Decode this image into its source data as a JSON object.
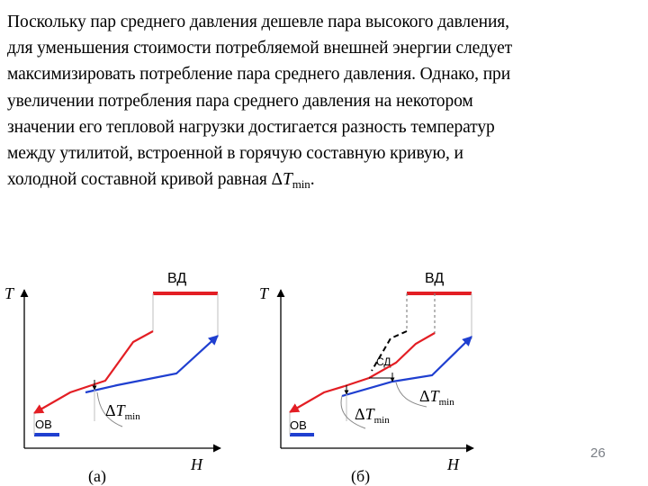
{
  "text": {
    "lines": [
      "Поскольку пар среднего давления дешевле пара высокого давления,",
      "для уменьшения стоимости потребляемой внешней энергии следует",
      "максимизировать потребление пара среднего давления. Однако, при",
      "увеличении потребления пара среднего давления на некотором",
      "значении его тепловой нагрузки достигается разность температур",
      "между утилитой, встроенной в горячую составную кривую, и"
    ],
    "last_line_prefix": "холодной составной кривой равная ",
    "delta": "Δ",
    "t_symbol": "T",
    "t_sub": "min",
    "last_line_suffix": "."
  },
  "figure_a": {
    "axis_t": "T",
    "axis_h": "H",
    "label_vd": "ВД",
    "label_ov": "ОВ",
    "dt_delta": "Δ",
    "dt_t": "T",
    "dt_sub": "min",
    "caption": "(а)"
  },
  "figure_b": {
    "axis_t": "T",
    "axis_h": "H",
    "label_vd": "ВД",
    "label_sd": "СД",
    "label_ov": "ОВ",
    "dt_delta": "Δ",
    "dt_t": "T",
    "dt_sub": "min",
    "dt2_delta": "Δ",
    "dt2_t": "T",
    "dt2_sub": "min",
    "caption": "(б)"
  },
  "page_number": "26",
  "colors": {
    "hot_curve": "#e31e24",
    "cold_curve": "#1f3fd0",
    "utility_bar": "#e31e24",
    "dashed": "#000000",
    "page_number": "#7b7f86"
  }
}
